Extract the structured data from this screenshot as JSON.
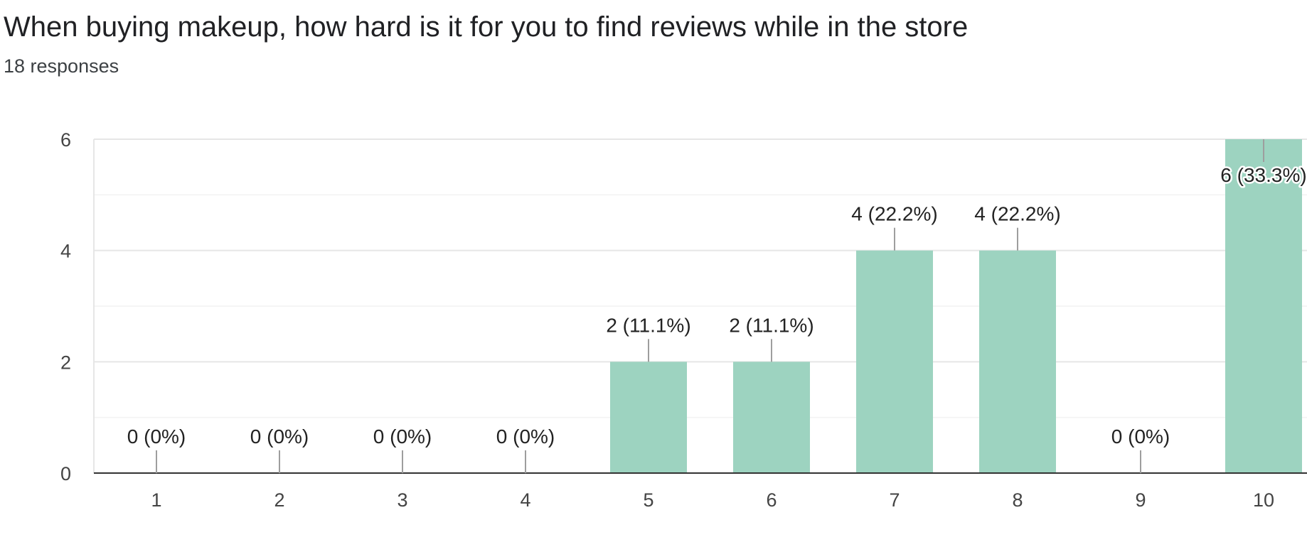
{
  "header": {
    "title": "When buying makeup, how hard is it for you to find reviews while in the store",
    "responses": "18 responses"
  },
  "chart_data": {
    "type": "bar",
    "categories": [
      "1",
      "2",
      "3",
      "4",
      "5",
      "6",
      "7",
      "8",
      "9",
      "10"
    ],
    "values": [
      0,
      0,
      0,
      0,
      2,
      2,
      4,
      4,
      0,
      6
    ],
    "data_labels": [
      "0 (0%)",
      "0 (0%)",
      "0 (0%)",
      "0 (0%)",
      "2 (11.1%)",
      "2 (11.1%)",
      "4 (22.2%)",
      "4 (22.2%)",
      "0 (0%)",
      "6 (33.3%)"
    ],
    "y_ticks": [
      0,
      2,
      4,
      6
    ],
    "ylim": [
      0,
      6
    ],
    "grid": true,
    "bar_color": "#9dd3c0",
    "title": "When buying makeup, how hard is it for you to find reviews while in the store",
    "xlabel": "",
    "ylabel": ""
  }
}
